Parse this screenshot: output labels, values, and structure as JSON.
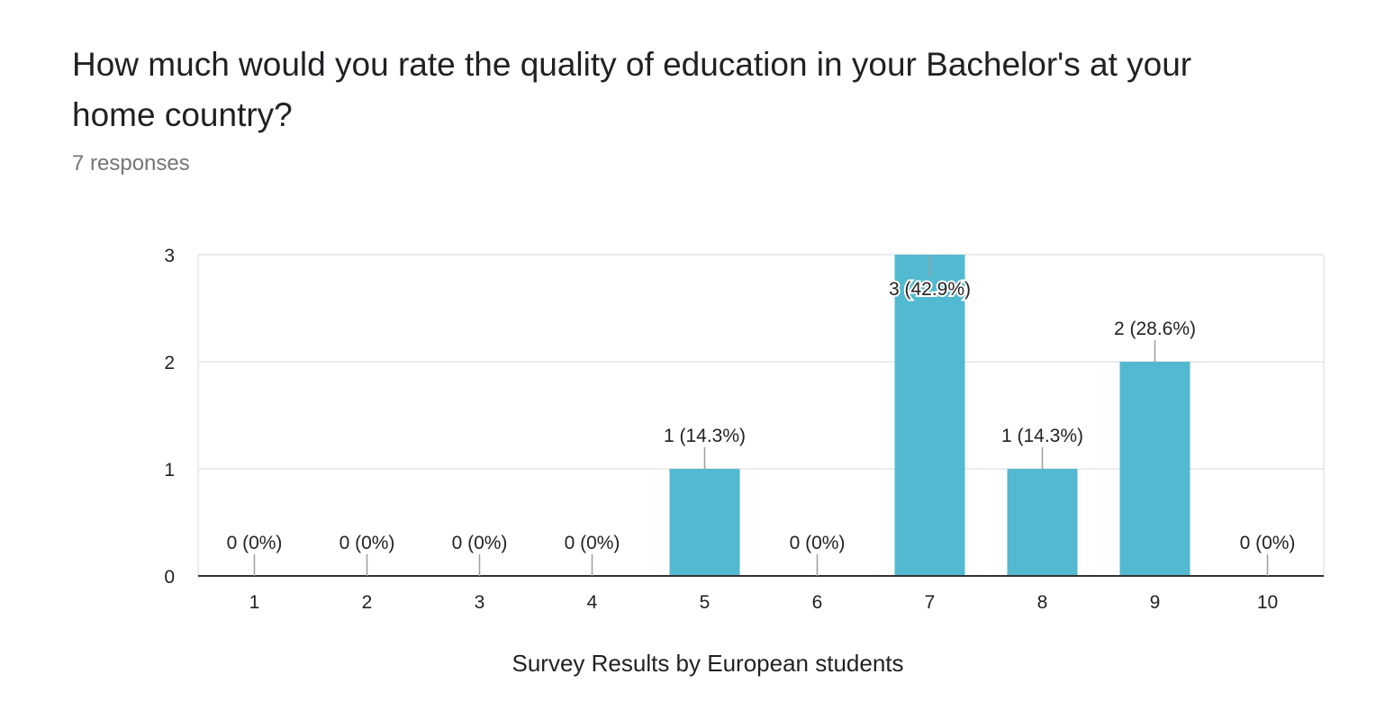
{
  "question": {
    "title": "How much would you rate the quality of education in your Bachelor's at your home country?",
    "responses": "7 responses"
  },
  "colors": {
    "bar": "#52B9D0",
    "grid": "#E5E5E5",
    "axis": "#333333",
    "leader": "#9E9E9E"
  },
  "chart_data": {
    "type": "bar",
    "categories": [
      "1",
      "2",
      "3",
      "4",
      "5",
      "6",
      "7",
      "8",
      "9",
      "10"
    ],
    "values": [
      0,
      0,
      0,
      0,
      1,
      0,
      3,
      1,
      2,
      0
    ],
    "data_labels": [
      "0 (0%)",
      "0 (0%)",
      "0 (0%)",
      "0 (0%)",
      "1 (14.3%)",
      "0 (0%)",
      "3 (42.9%)",
      "1 (14.3%)",
      "2 (28.6%)",
      "0 (0%)"
    ],
    "xlabel": "Survey Results by European students",
    "ylabel": "",
    "ylim": [
      0,
      3
    ],
    "yticks": [
      "0",
      "1",
      "2",
      "3"
    ],
    "grid": true,
    "legend": "none"
  }
}
